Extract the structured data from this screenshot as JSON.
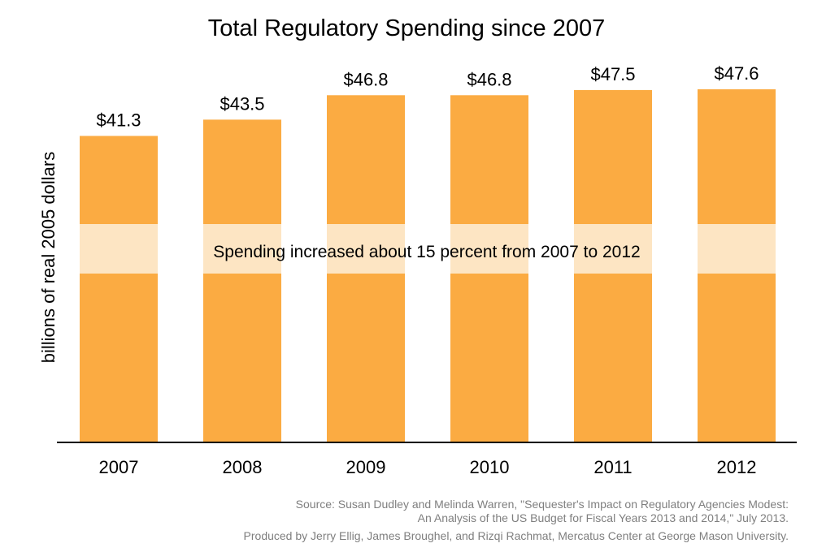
{
  "chart_data": {
    "type": "bar",
    "title": "Total Regulatory Spending since 2007",
    "xlabel": "",
    "ylabel": "billions of real 2005 dollars",
    "categories": [
      "2007",
      "2008",
      "2009",
      "2010",
      "2011",
      "2012"
    ],
    "values": [
      41.3,
      43.5,
      46.8,
      46.8,
      47.5,
      47.6
    ],
    "data_labels": [
      "$41.3",
      "$43.5",
      "$46.8",
      "$46.8",
      "$47.5",
      "$47.6"
    ],
    "ylim": [
      0,
      47.6
    ],
    "grid": false,
    "bar_color": "#FBAB42",
    "band_color": "#FDE5C3",
    "annotation": "Spending increased about 15 percent from 2007 to 2012",
    "source_lines": [
      "Source: Susan Dudley and Melinda Warren, \"Sequester's Impact on Regulatory Agencies Modest:",
      "An Analysis of the US Budget for Fiscal Years 2013 and 2014,\" July 2013.",
      "Produced by Jerry Ellig, James Broughel, and Rizqi Rachmat, Mercatus Center at George Mason University."
    ]
  }
}
